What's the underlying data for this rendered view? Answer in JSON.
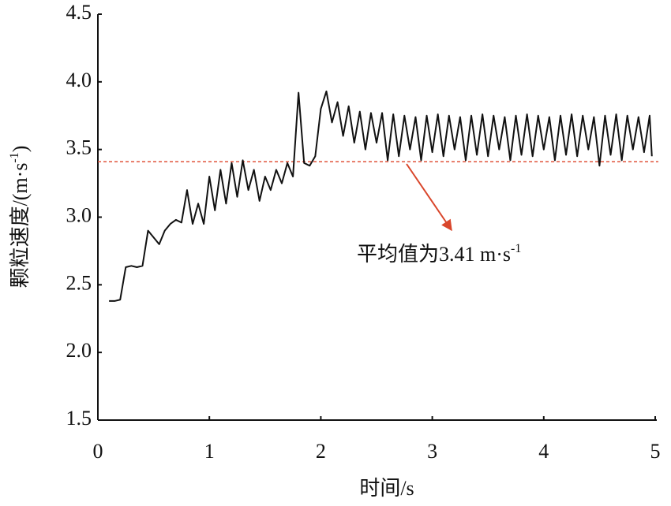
{
  "chart_data": {
    "type": "line",
    "xlabel": "时间/s",
    "ylabel": {
      "text": "颗粒速度/(m·s",
      "sup": "-1",
      "end": ")"
    },
    "annotation": {
      "text": "平均值为3.41 m·s",
      "sup": "-1"
    },
    "mean_line": 3.41,
    "mean_color": "#e0533a",
    "xlim": [
      0,
      5
    ],
    "xticks": [
      0,
      1,
      2,
      3,
      4,
      5
    ],
    "ylim": [
      1.5,
      4.5
    ],
    "yticks": [
      1.5,
      {
        "value": 2,
        "label": "2.0"
      },
      2.5,
      {
        "value": 3,
        "label": "3.0"
      },
      3.5,
      {
        "value": 4,
        "label": "4.0"
      },
      4.5
    ],
    "series": [
      {
        "color": "#111111",
        "x": [
          0.1,
          0.15,
          0.2,
          0.25,
          0.3,
          0.35,
          0.4,
          0.45,
          0.5,
          0.55,
          0.6,
          0.65,
          0.7,
          0.75,
          0.8,
          0.85,
          0.9,
          0.95,
          1.0,
          1.05,
          1.1,
          1.15,
          1.2,
          1.25,
          1.3,
          1.35,
          1.4,
          1.45,
          1.5,
          1.55,
          1.6,
          1.65,
          1.7,
          1.75,
          1.8,
          1.85,
          1.9,
          1.95,
          2.0,
          2.05,
          2.1,
          2.15,
          2.2,
          2.25,
          2.3,
          2.35,
          2.4,
          2.45,
          2.5,
          2.55,
          2.6,
          2.65,
          2.7,
          2.75,
          2.8,
          2.85,
          2.9,
          2.95,
          3.0,
          3.05,
          3.1,
          3.15,
          3.2,
          3.25,
          3.3,
          3.35,
          3.4,
          3.45,
          3.5,
          3.55,
          3.6,
          3.65,
          3.7,
          3.75,
          3.8,
          3.85,
          3.9,
          3.95,
          4.0,
          4.05,
          4.1,
          4.15,
          4.2,
          4.25,
          4.3,
          4.35,
          4.4,
          4.45,
          4.5,
          4.55,
          4.6,
          4.65,
          4.7,
          4.75,
          4.8,
          4.85,
          4.9,
          4.95,
          4.97
        ],
        "values": [
          2.38,
          2.38,
          2.39,
          2.63,
          2.64,
          2.63,
          2.64,
          2.9,
          2.85,
          2.8,
          2.9,
          2.95,
          2.98,
          2.96,
          3.2,
          2.95,
          3.1,
          2.95,
          3.3,
          3.05,
          3.35,
          3.1,
          3.4,
          3.15,
          3.42,
          3.2,
          3.35,
          3.12,
          3.3,
          3.2,
          3.35,
          3.25,
          3.4,
          3.3,
          3.92,
          3.4,
          3.38,
          3.45,
          3.8,
          3.93,
          3.7,
          3.85,
          3.6,
          3.82,
          3.55,
          3.78,
          3.5,
          3.77,
          3.55,
          3.77,
          3.42,
          3.76,
          3.45,
          3.75,
          3.5,
          3.74,
          3.42,
          3.75,
          3.48,
          3.76,
          3.45,
          3.75,
          3.5,
          3.74,
          3.42,
          3.75,
          3.46,
          3.76,
          3.45,
          3.75,
          3.5,
          3.74,
          3.42,
          3.75,
          3.46,
          3.76,
          3.45,
          3.75,
          3.5,
          3.74,
          3.42,
          3.75,
          3.46,
          3.76,
          3.45,
          3.75,
          3.5,
          3.74,
          3.38,
          3.75,
          3.46,
          3.76,
          3.42,
          3.75,
          3.5,
          3.74,
          3.48,
          3.75,
          3.45
        ]
      }
    ]
  }
}
